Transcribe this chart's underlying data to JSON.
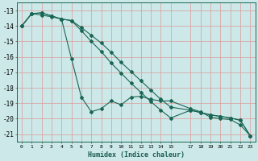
{
  "xlabel": "Humidex (Indice chaleur)",
  "bg_color": "#cce8e8",
  "grid_color": "#dd9999",
  "line_color": "#1a6655",
  "line1_x": [
    0,
    1,
    2,
    3,
    4,
    5,
    6,
    7,
    8,
    9,
    10,
    11,
    12,
    13,
    14,
    15,
    17,
    18,
    19,
    20,
    21,
    22,
    23
  ],
  "line1_y": [
    -14.0,
    -13.2,
    -13.3,
    -13.4,
    -13.55,
    -16.1,
    -18.6,
    -19.55,
    -19.35,
    -18.85,
    -19.1,
    -18.6,
    -18.55,
    -18.75,
    -18.85,
    -18.85,
    -19.35,
    -19.55,
    -19.9,
    -20.0,
    -20.05,
    -20.4,
    -21.1
  ],
  "line2_x": [
    0,
    1,
    2,
    3,
    4,
    5,
    6,
    7,
    8,
    9,
    10,
    11,
    12,
    13,
    14,
    15,
    17,
    18,
    19,
    20,
    21,
    22,
    23
  ],
  "line2_y": [
    -14.0,
    -13.2,
    -13.15,
    -13.35,
    -13.55,
    -13.65,
    -14.3,
    -15.0,
    -15.65,
    -16.4,
    -17.05,
    -17.7,
    -18.3,
    -18.9,
    -19.45,
    -19.95,
    -19.45,
    -19.6,
    -19.75,
    -19.85,
    -19.95,
    -20.1,
    -21.1
  ],
  "line3_x": [
    0,
    1,
    2,
    3,
    4,
    5,
    6,
    7,
    8,
    9,
    10,
    11,
    12,
    13,
    14,
    15,
    17,
    18,
    19,
    20,
    21,
    22,
    23
  ],
  "line3_y": [
    -14.0,
    -13.2,
    -13.15,
    -13.35,
    -13.55,
    -13.65,
    -14.1,
    -14.6,
    -15.1,
    -15.7,
    -16.35,
    -16.95,
    -17.55,
    -18.15,
    -18.75,
    -19.25,
    -19.45,
    -19.6,
    -19.75,
    -19.85,
    -19.95,
    -20.1,
    -21.1
  ],
  "xlim": [
    -0.5,
    23.5
  ],
  "ylim": [
    -21.5,
    -12.5
  ],
  "xticks": [
    0,
    1,
    2,
    3,
    4,
    5,
    6,
    7,
    8,
    9,
    10,
    11,
    12,
    13,
    14,
    15,
    17,
    18,
    19,
    20,
    21,
    22,
    23
  ],
  "yticks": [
    -13,
    -14,
    -15,
    -16,
    -17,
    -18,
    -19,
    -20,
    -21
  ],
  "markersize": 2.0,
  "linewidth": 0.8
}
